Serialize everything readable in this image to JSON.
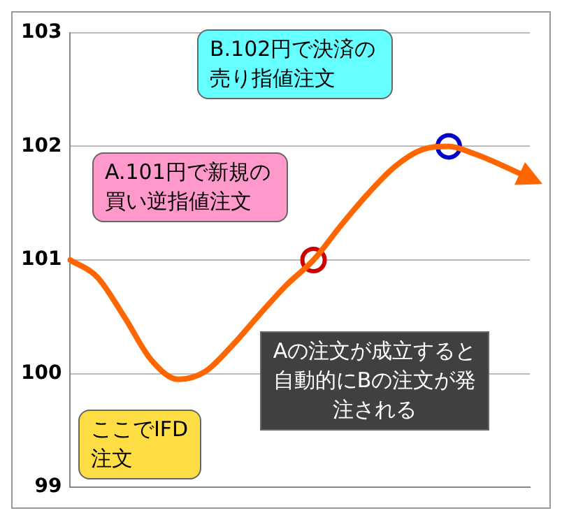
{
  "chart_data": {
    "type": "line",
    "categories": [
      null,
      null,
      null,
      null,
      null,
      null,
      null,
      null,
      null,
      null,
      null,
      null,
      null,
      null,
      null,
      null,
      null,
      null
    ],
    "series": [
      {
        "type": "line",
        "marker": "none",
        "color": "#ff6600",
        "values": [
          101.0,
          100.85,
          100.5,
          100.12,
          99.95,
          100.02,
          100.25,
          100.52,
          100.78,
          101.0,
          101.3,
          101.58,
          101.82,
          101.97,
          102.0,
          101.93,
          101.83,
          101.72
        ]
      },
      {
        "type": "scatter",
        "marker": "circle",
        "colors": [
          "#cc0000",
          "#cc0000",
          "#cc0000",
          "#cc0000",
          "#cc0000",
          "#cc0000",
          "#cc0000",
          "#cc0000",
          "#cc0000",
          "#cc0000",
          "#cc0000",
          "#cc0000",
          "#cc0000",
          "#cc0000",
          "#0000cc",
          "#0000cc",
          "#0000cc",
          "#0000cc"
        ],
        "values": [
          null,
          null,
          null,
          null,
          null,
          null,
          null,
          null,
          null,
          101.0,
          null,
          null,
          null,
          null,
          102.0,
          null,
          null,
          null
        ]
      }
    ],
    "ylim": [
      99,
      103
    ],
    "yticks": [
      99,
      100,
      101,
      102,
      103
    ],
    "grid": "y",
    "tick_labels": "y",
    "annotations": [
      "B.102円で決済の売り指値注文",
      "A.101円で新規の買い逆指値注文",
      "ここでIFD注文",
      "Aの注文が成立すると自動的にBの注文が発注される"
    ]
  }
}
